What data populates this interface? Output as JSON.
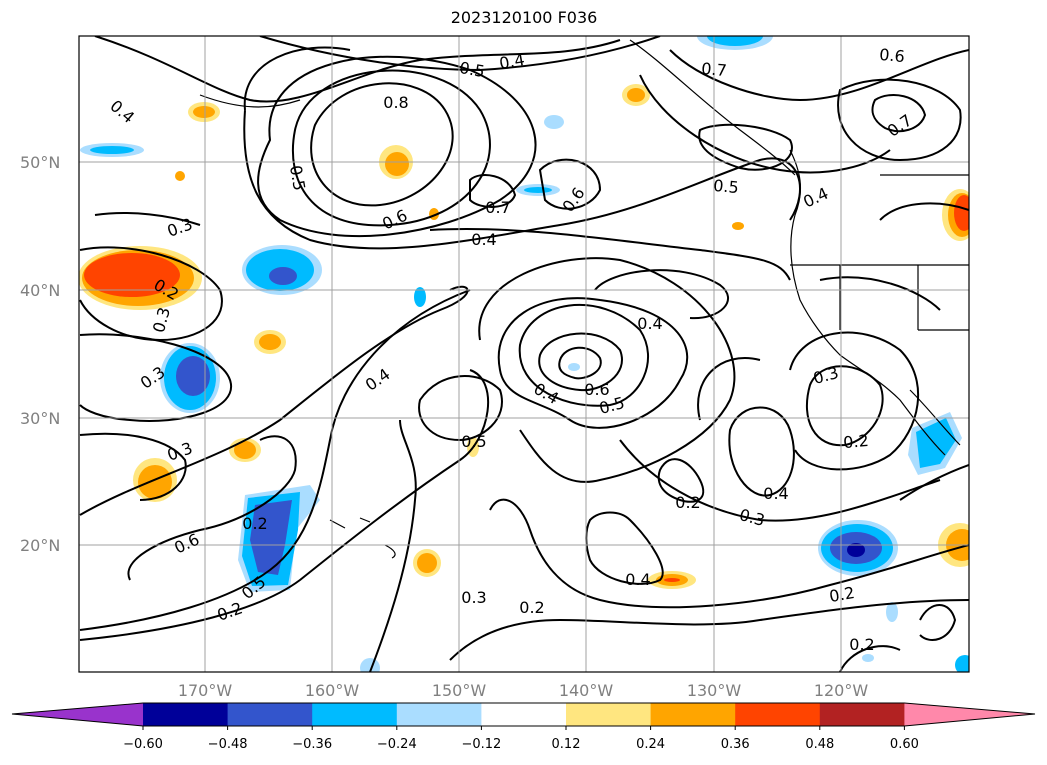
{
  "title": "2023120100 F036",
  "lat_labels": [
    "50°N",
    "40°N",
    "30°N",
    "20°N"
  ],
  "lon_labels": [
    "170°W",
    "160°W",
    "150°W",
    "140°W",
    "130°W",
    "120°W"
  ],
  "colorbar": {
    "ticks": [
      "−0.60",
      "−0.48",
      "−0.36",
      "−0.24",
      "−0.12",
      "0.12",
      "0.24",
      "0.36",
      "0.48",
      "0.60"
    ],
    "colors": [
      "#9933cc",
      "#000099",
      "#3355cc",
      "#00bbff",
      "#aaddff",
      "#ffffff",
      "#ffe680",
      "#ffa500",
      "#ff4400",
      "#b22222",
      "#ff88aa"
    ]
  },
  "contour_labels": [
    "0.4",
    "0.5",
    "0.7",
    "0.6",
    "0.8",
    "0.4",
    "0.7",
    "0.5",
    "0.7",
    "0.5",
    "0.6",
    "0.4",
    "0.6",
    "0.4",
    "0.3",
    "0.4",
    "0.2",
    "0.3",
    "0.3",
    "0.4",
    "0.6",
    "0.5",
    "0.4",
    "0.3",
    "0.2",
    "0.5",
    "0.3",
    "0.2",
    "0.4",
    "0.6",
    "0.5",
    "0.3",
    "0.2",
    "0.3",
    "0.2",
    "0.4",
    "0.2",
    "0.2",
    "0.2"
  ]
}
